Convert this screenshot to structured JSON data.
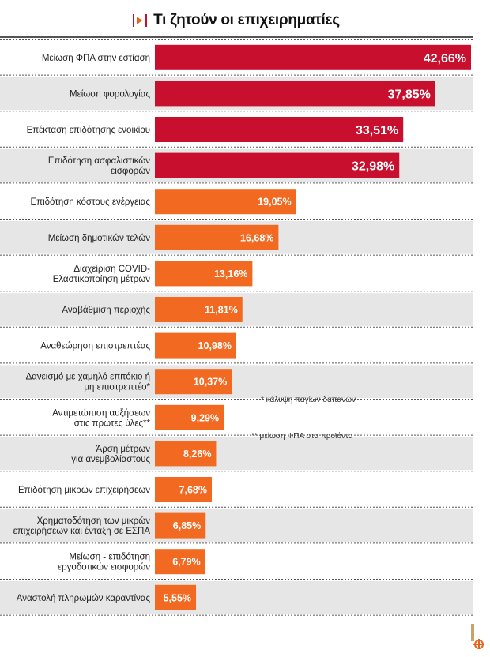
{
  "title": "Τι ζητούν οι επιχειρηματίες",
  "notes": {
    "note1": "* κάλυψη παγίων δαπανών",
    "note2": "** μείωση ΦΠΑ στα προϊόντα"
  },
  "colors": {
    "top_bars": "#c8102e",
    "other_bars": "#f26a21",
    "stripe": "#e6e6e6"
  },
  "chart_data": {
    "type": "bar",
    "orientation": "horizontal",
    "title": "Τι ζητούν οι επιχειρηματίες",
    "unit": "%",
    "categories": [
      [
        "Μείωση ΦΠΑ στην εστίαση"
      ],
      [
        "Μείωση φορολογίας"
      ],
      [
        "Επέκταση επιδότησης ενοικίου"
      ],
      [
        "Επιδότηση ασφαλιστικών",
        "εισφορών"
      ],
      [
        "Επιδότηση κόστους ενέργειας"
      ],
      [
        "Μείωση δημοτικών τελών"
      ],
      [
        "Διαχείριση COVID-",
        "Ελαστικοποίηση μέτρων"
      ],
      [
        "Αναβάθμιση περιοχής"
      ],
      [
        "Αναθεώρηση επιστρεπτέας"
      ],
      [
        "Δανεισμό με χαμηλό επιτόκιο ή",
        "μη επιστρεπτέο*"
      ],
      [
        "Αντιμετώπιση αυξήσεων",
        "στις πρώτες ύλες**"
      ],
      [
        "Άρση μέτρων",
        "για ανεμβολίαστους"
      ],
      [
        "Επιδότηση μικρών επιχειρήσεων"
      ],
      [
        "Χρηματοδότηση των μικρών",
        "επιχειρήσεων και ένταξη σε ΕΣΠΑ"
      ],
      [
        "Μείωση - επιδότηση",
        "εργοδοτικών εισφορών"
      ],
      [
        "Αναστολή πληρωμών καραντίνας"
      ]
    ],
    "values": [
      42.66,
      37.85,
      33.51,
      32.98,
      19.05,
      16.68,
      13.16,
      11.81,
      10.98,
      10.37,
      9.29,
      8.26,
      7.68,
      6.85,
      6.79,
      5.55
    ],
    "value_labels": [
      "42,66%",
      "37,85%",
      "33,51%",
      "32,98%",
      "19,05%",
      "16,68%",
      "13,16%",
      "11,81%",
      "10,98%",
      "10,37%",
      "9,29%",
      "8,26%",
      "7,68%",
      "6,85%",
      "6,79%",
      "5,55%"
    ],
    "highlight_count": 4,
    "xlim": [
      0,
      42.66
    ]
  }
}
